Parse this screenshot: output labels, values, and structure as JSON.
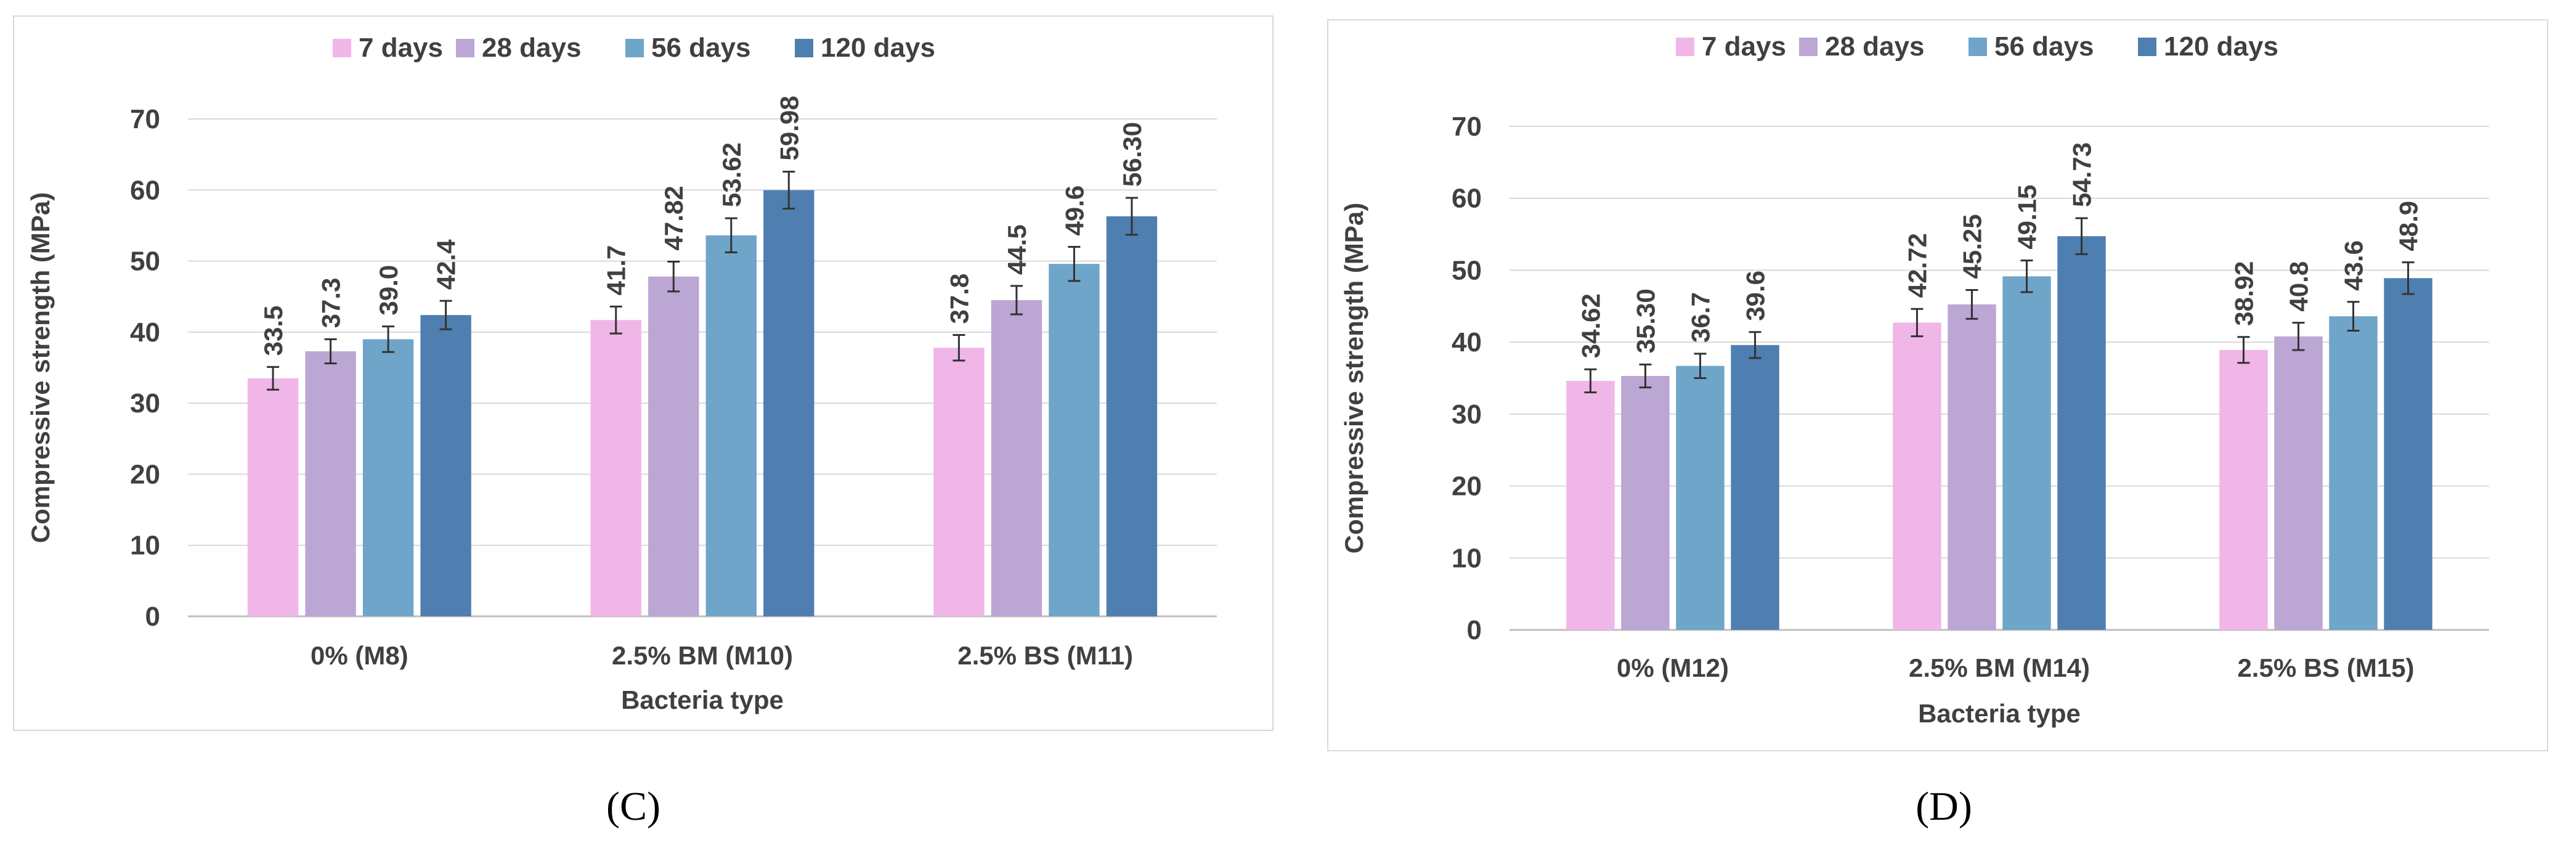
{
  "panels": [
    {
      "caption": "(C)",
      "chart_data": {
        "type": "bar",
        "title": "",
        "xlabel": "Bacteria type",
        "ylabel": "Compressive strength (MPa)",
        "ylim": [
          0,
          70
        ],
        "yticks": [
          0,
          10,
          20,
          30,
          40,
          50,
          60,
          70
        ],
        "grid": true,
        "legend_position": "top",
        "categories": [
          "0% (M8)",
          "2.5% BM (M10)",
          "2.5% BS (M11)"
        ],
        "series": [
          {
            "name": "7 days",
            "color": "#f0b6e8",
            "values": [
              33.5,
              41.7,
              37.8
            ],
            "labels": [
              "33.5",
              "41.7",
              "37.8"
            ],
            "errors": [
              1.6,
              1.9,
              1.8
            ]
          },
          {
            "name": "28 days",
            "color": "#bca6d4",
            "values": [
              37.3,
              47.82,
              44.5
            ],
            "labels": [
              "37.3",
              "47.82",
              "44.5"
            ],
            "errors": [
              1.7,
              2.1,
              2.0
            ]
          },
          {
            "name": "56 days",
            "color": "#6fa5c9",
            "values": [
              39.0,
              53.62,
              49.6
            ],
            "labels": [
              "39.0",
              "53.62",
              "49.6"
            ],
            "errors": [
              1.8,
              2.4,
              2.4
            ]
          },
          {
            "name": "120 days",
            "color": "#4f7fb0",
            "values": [
              42.4,
              59.98,
              56.3
            ],
            "labels": [
              "42.4",
              "59.98",
              "56.30"
            ],
            "errors": [
              2.0,
              2.6,
              2.6
            ]
          }
        ]
      }
    },
    {
      "caption": "(D)",
      "chart_data": {
        "type": "bar",
        "title": "",
        "xlabel": "Bacteria type",
        "ylabel": "Compressive strength (MPa)",
        "ylim": [
          0,
          70
        ],
        "yticks": [
          0,
          10,
          20,
          30,
          40,
          50,
          60,
          70
        ],
        "grid": true,
        "legend_position": "top",
        "categories": [
          "0% (M12)",
          "2.5% BM (M14)",
          "2.5% BS (M15)"
        ],
        "series": [
          {
            "name": "7 days",
            "color": "#f0b6e8",
            "values": [
              34.62,
              42.72,
              38.92
            ],
            "labels": [
              "34.62",
              "42.72",
              "38.92"
            ],
            "errors": [
              1.6,
              1.9,
              1.8
            ]
          },
          {
            "name": "28 days",
            "color": "#bca6d4",
            "values": [
              35.3,
              45.25,
              40.8
            ],
            "labels": [
              "35.30",
              "45.25",
              "40.8"
            ],
            "errors": [
              1.6,
              2.0,
              1.9
            ]
          },
          {
            "name": "56 days",
            "color": "#6fa5c9",
            "values": [
              36.7,
              49.15,
              43.6
            ],
            "labels": [
              "36.7",
              "49.15",
              "43.6"
            ],
            "errors": [
              1.7,
              2.2,
              2.0
            ]
          },
          {
            "name": "120 days",
            "color": "#4f7fb0",
            "values": [
              39.6,
              54.73,
              48.9
            ],
            "labels": [
              "39.6",
              "54.73",
              "48.9"
            ],
            "errors": [
              1.8,
              2.5,
              2.2
            ]
          }
        ]
      }
    }
  ]
}
